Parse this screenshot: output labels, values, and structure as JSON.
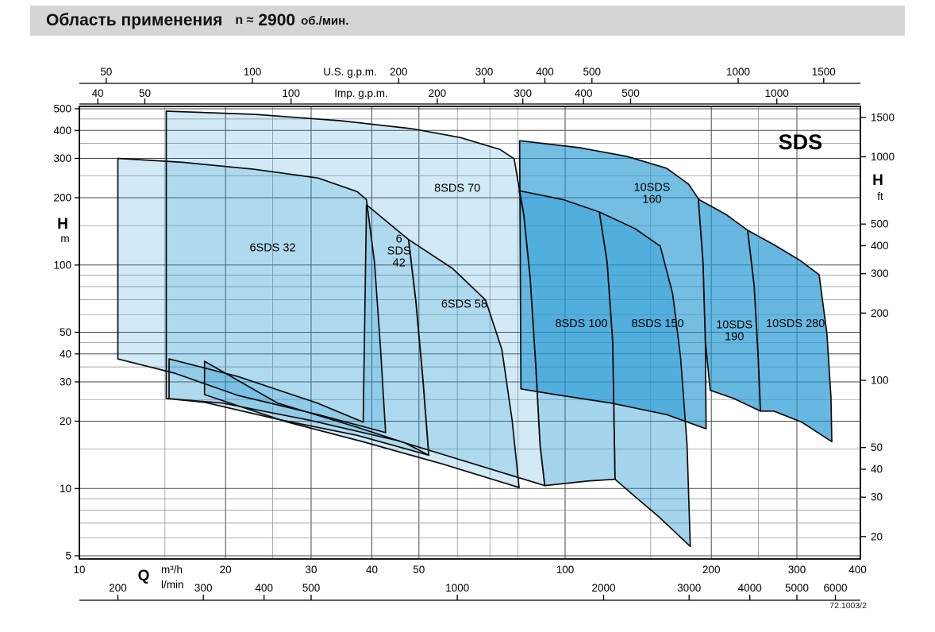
{
  "page": {
    "title_main": "Область применения",
    "title_speed_prefix": "n ≈",
    "title_speed_value": "2900",
    "title_speed_units": "об./мин.",
    "doc_ref": "72.1003/2"
  },
  "chart_data": {
    "type": "area",
    "title": "Область применения n ≈ 2900 об./мин.",
    "series_badge": "SDS",
    "badge_pos": [
      305,
      330
    ],
    "x_axis_m3h": {
      "label_q": "Q",
      "label_unit_1": "m³/h",
      "label_unit_2": "l/min",
      "ticks_m3h": [
        10,
        20,
        30,
        40,
        50,
        100,
        200,
        300,
        400
      ],
      "ticks_lmin": [
        200,
        300,
        400,
        500,
        1000,
        2000,
        3000,
        4000,
        5000,
        6000
      ],
      "range_m3h": [
        10,
        406
      ]
    },
    "x_axis_top": {
      "us_label": "U.S. g.p.m.",
      "us_ticks": [
        50,
        100,
        200,
        300,
        400,
        500,
        1000,
        1500
      ],
      "imp_label": "Imp. g.p.m.",
      "imp_ticks": [
        40,
        50,
        100,
        200,
        300,
        400,
        500,
        1000
      ]
    },
    "y_axis_m": {
      "label": "H",
      "unit": "m",
      "ticks": [
        5,
        10,
        20,
        30,
        40,
        50,
        100,
        200,
        300,
        400,
        500
      ],
      "range_m": [
        5,
        520
      ]
    },
    "y_axis_ft": {
      "label": "H",
      "unit": "ft",
      "ticks": [
        20,
        30,
        40,
        50,
        100,
        200,
        300,
        400,
        500,
        1000,
        1500
      ]
    },
    "grid": {
      "x_minor": [
        15,
        25,
        60,
        70,
        80,
        150,
        250
      ],
      "y_minor": [
        6,
        7,
        8,
        9,
        15,
        25,
        35,
        45,
        60,
        70,
        80,
        90,
        150,
        250,
        350,
        450
      ]
    },
    "conversions": {
      "us_gpm_per_m3h": 4.403,
      "imp_gpm_per_m3h": 3.666,
      "lmin_per_m3h": 16.667,
      "m_per_ft": 0.3048
    },
    "regions": [
      {
        "id": "8sds-70",
        "label_lines": [
          "8SDS 70"
        ],
        "label_pos": [
          60,
          222
        ],
        "fill": "#1e96d2",
        "fill_opacity": 0.2,
        "points": [
          [
            15.1,
            488
          ],
          [
            22.9,
            472
          ],
          [
            34.6,
            442
          ],
          [
            48.5,
            407
          ],
          [
            60.8,
            372
          ],
          [
            73.4,
            329
          ],
          [
            78.5,
            299
          ],
          [
            82.2,
            168
          ],
          [
            84.7,
            87.6
          ],
          [
            87,
            35.6
          ],
          [
            88.8,
            15.7
          ],
          [
            90.8,
            10.3
          ],
          [
            65.5,
            12.8
          ],
          [
            45.1,
            16.4
          ],
          [
            29.8,
            20.2
          ],
          [
            19.7,
            24.1
          ],
          [
            15.1,
            25.3
          ]
        ]
      },
      {
        "id": "6sds-32",
        "label_lines": [
          "6SDS 32"
        ],
        "label_pos": [
          25,
          120
        ],
        "fill": "#1e96d2",
        "fill_opacity": 0.2,
        "points": [
          [
            12,
            300
          ],
          [
            16.3,
            288
          ],
          [
            22.9,
            268
          ],
          [
            31,
            245
          ],
          [
            37.3,
            213
          ],
          [
            39,
            196
          ],
          [
            40.5,
            103
          ],
          [
            41.7,
            42
          ],
          [
            42.7,
            17.8
          ],
          [
            31,
            21.4
          ],
          [
            21.2,
            26.1
          ],
          [
            15.7,
            32.8
          ],
          [
            12,
            38
          ]
        ]
      },
      {
        "id": "6sds-42",
        "label_lines": [
          "6",
          "SDS",
          "42"
        ],
        "label_pos": [
          45.5,
          116
        ],
        "fill": "#1e96d2",
        "fill_opacity": 0.2,
        "points": [
          [
            39,
            186
          ],
          [
            47.6,
            130
          ],
          [
            49.3,
            68.5
          ],
          [
            51,
            30.2
          ],
          [
            52.4,
            14.1
          ],
          [
            37.3,
            17.3
          ],
          [
            25.6,
            20.4
          ],
          [
            18.1,
            24.3
          ],
          [
            15.3,
            25.2
          ],
          [
            15.3,
            38
          ],
          [
            21.2,
            31.7
          ],
          [
            30.9,
            24.1
          ],
          [
            38.4,
            19.8
          ]
        ]
      },
      {
        "id": "6sds-58",
        "label_lines": [
          "6SDS 58"
        ],
        "label_pos": [
          62,
          67
        ],
        "fill": "#1e96d2",
        "fill_opacity": 0.2,
        "points": [
          [
            47.6,
            130
          ],
          [
            58.6,
            96.6
          ],
          [
            68.6,
            69.7
          ],
          [
            74.1,
            41.9
          ],
          [
            77.8,
            20.1
          ],
          [
            80.4,
            10.1
          ],
          [
            56.4,
            12.8
          ],
          [
            38.7,
            16.1
          ],
          [
            26.6,
            19.9
          ],
          [
            18.1,
            26.3
          ],
          [
            18.1,
            37.1
          ],
          [
            25.6,
            24.1
          ],
          [
            37.3,
            18.8
          ],
          [
            46.8,
            16
          ],
          [
            52.4,
            14.1
          ],
          [
            51,
            30.2
          ],
          [
            49.3,
            68.5
          ]
        ]
      },
      {
        "id": "8sds-100",
        "label_lines": [
          "8SDS 100"
        ],
        "label_pos": [
          108,
          55
        ],
        "fill": "#1e96d2",
        "fill_opacity": 0.4,
        "points": [
          [
            80.4,
            215
          ],
          [
            99.2,
            196
          ],
          [
            117.6,
            172.6
          ],
          [
            122,
            103
          ],
          [
            125.3,
            45.5
          ],
          [
            126.7,
            11
          ],
          [
            111.2,
            10.8
          ],
          [
            90.8,
            10.3
          ],
          [
            88.8,
            15.7
          ],
          [
            87,
            35.6
          ],
          [
            84.7,
            87.6
          ],
          [
            82.2,
            168
          ]
        ]
      },
      {
        "id": "8sds-150",
        "label_lines": [
          "8SDS 150"
        ],
        "label_pos": [
          155,
          55
        ],
        "fill": "#1e96d2",
        "fill_opacity": 0.4,
        "points": [
          [
            117.6,
            172.6
          ],
          [
            139.3,
            145.4
          ],
          [
            157,
            121.4
          ],
          [
            166.5,
            74.3
          ],
          [
            172.8,
            38.8
          ],
          [
            178.2,
            15.7
          ],
          [
            181,
            5.5
          ],
          [
            155.6,
            7.5
          ],
          [
            139.3,
            9.2
          ],
          [
            126.7,
            11
          ],
          [
            125.3,
            45.5
          ],
          [
            122,
            103
          ]
        ]
      },
      {
        "id": "10sds-160",
        "label_lines": [
          "10SDS",
          "160"
        ],
        "label_pos": [
          151,
          210
        ],
        "fill": "#1e96d2",
        "fill_opacity": 0.62,
        "points": [
          [
            80.6,
            360
          ],
          [
            107,
            335
          ],
          [
            134,
            306
          ],
          [
            161.8,
            271
          ],
          [
            179.5,
            230
          ],
          [
            188,
            198
          ],
          [
            192.2,
            103
          ],
          [
            194.4,
            45.5
          ],
          [
            195.1,
            18.5
          ],
          [
            161.8,
            21.4
          ],
          [
            124.4,
            24.1
          ],
          [
            95.5,
            26.3
          ],
          [
            81.1,
            27.9
          ]
        ]
      },
      {
        "id": "10sds-190",
        "label_lines": [
          "10SDS",
          "190"
        ],
        "label_pos": [
          223,
          51
        ],
        "fill": "#1e96d2",
        "fill_opacity": 0.68,
        "points": [
          [
            188,
            197
          ],
          [
            214.6,
            168
          ],
          [
            237.5,
            143
          ],
          [
            245,
            80.7
          ],
          [
            249.7,
            38.8
          ],
          [
            252.4,
            22.2
          ],
          [
            222.3,
            25.3
          ],
          [
            198.9,
            27.5
          ],
          [
            194.4,
            45.5
          ],
          [
            192.2,
            103
          ]
        ]
      },
      {
        "id": "10sds-280",
        "label_lines": [
          "10SDS 280"
        ],
        "label_pos": [
          298,
          55
        ],
        "fill": "#1e96d2",
        "fill_opacity": 0.68,
        "points": [
          [
            237.5,
            143
          ],
          [
            268.9,
            123.4
          ],
          [
            304.6,
            104.8
          ],
          [
            333.3,
            90.5
          ],
          [
            346,
            49
          ],
          [
            352.6,
            25.6
          ],
          [
            354,
            16.2
          ],
          [
            307,
            19.8
          ],
          [
            269,
            22.2
          ],
          [
            252.4,
            22.2
          ],
          [
            249.7,
            38.8
          ],
          [
            245,
            80.7
          ]
        ]
      }
    ]
  }
}
